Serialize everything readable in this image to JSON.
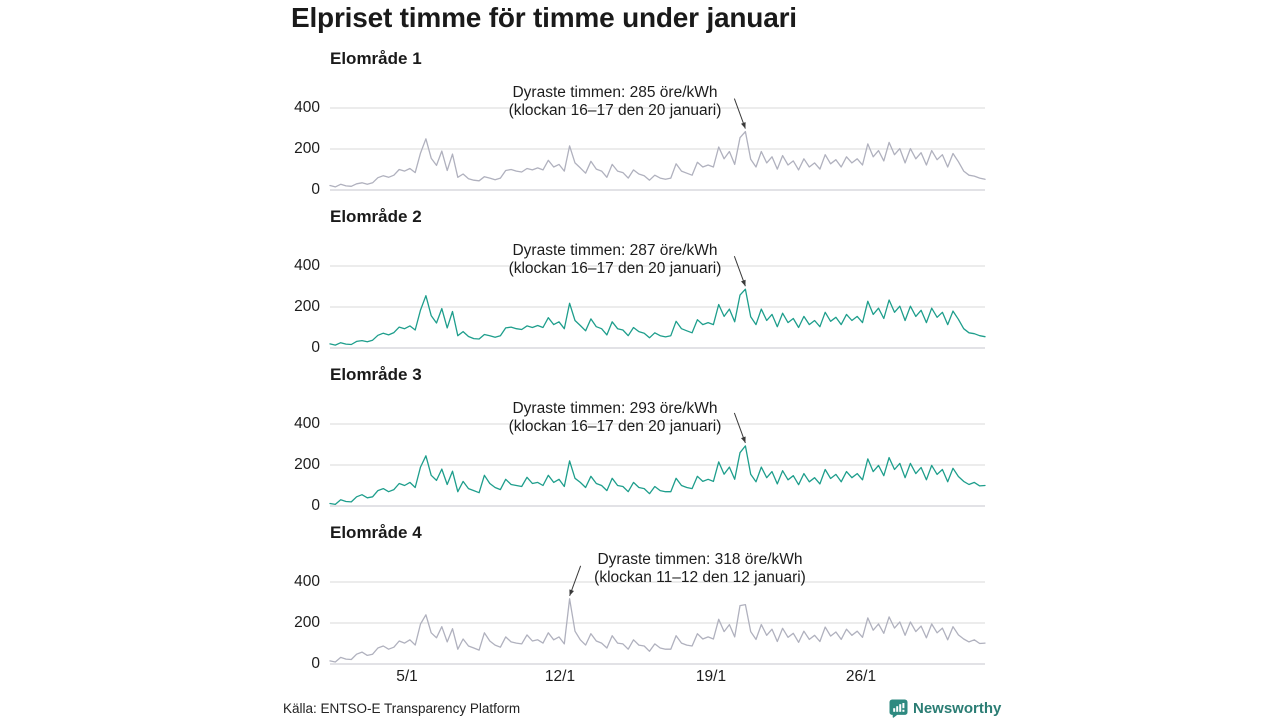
{
  "title": "Elpriset timme för timme under januari",
  "axis": {
    "y_ticks": [
      "400",
      "200",
      "0"
    ],
    "x_ticks": [
      "5/1",
      "12/1",
      "19/1",
      "26/1"
    ]
  },
  "footer": {
    "source": "Källa: ENTSO-E Transparency Platform",
    "brand": "Newsworthy"
  },
  "colors": {
    "line_gray": "#b0b1be",
    "line_teal": "#1e9e8c",
    "grid": "#d8d8d8",
    "baseline": "#c6c6cc",
    "arrow": "#3a3a3a",
    "brand_teal": "#2b7d74",
    "text": "#1d1d1d"
  },
  "chart_data": [
    {
      "type": "line",
      "title": "Elområde 1",
      "unit": "öre/kWh",
      "x_range": "1–31 januari, timvärden",
      "ylim": [
        0,
        450
      ],
      "y_ticks": [
        0,
        200,
        400
      ],
      "x_tick_labels": [
        "5/1",
        "12/1",
        "19/1",
        "26/1"
      ],
      "line_color": "#b0b1be",
      "annotation": {
        "line1": "Dyraste timmen: 285 öre/kWh",
        "line2": "(klockan 16–17 den 20 januari)",
        "arrow_dir": "down-right"
      },
      "peak": {
        "value": 285,
        "index": 78
      },
      "values": [
        22,
        15,
        28,
        20,
        18,
        30,
        35,
        28,
        35,
        60,
        70,
        62,
        72,
        100,
        92,
        105,
        85,
        180,
        250,
        155,
        120,
        190,
        95,
        175,
        62,
        78,
        55,
        48,
        45,
        65,
        58,
        50,
        58,
        95,
        100,
        92,
        88,
        105,
        98,
        108,
        98,
        145,
        112,
        125,
        92,
        215,
        132,
        108,
        82,
        140,
        102,
        92,
        62,
        125,
        92,
        85,
        58,
        98,
        78,
        70,
        48,
        72,
        58,
        52,
        58,
        128,
        92,
        82,
        72,
        135,
        112,
        122,
        112,
        210,
        152,
        188,
        125,
        255,
        285,
        150,
        112,
        188,
        132,
        162,
        102,
        168,
        122,
        142,
        98,
        152,
        112,
        132,
        102,
        172,
        128,
        148,
        112,
        162,
        132,
        152,
        122,
        225,
        162,
        192,
        142,
        232,
        172,
        202,
        132,
        202,
        152,
        182,
        122,
        192,
        148,
        172,
        112,
        178,
        138,
        92,
        72,
        68,
        58,
        52
      ]
    },
    {
      "type": "line",
      "title": "Elområde 2",
      "unit": "öre/kWh",
      "x_range": "1–31 januari, timvärden",
      "ylim": [
        0,
        450
      ],
      "y_ticks": [
        0,
        200,
        400
      ],
      "x_tick_labels": [
        "5/1",
        "12/1",
        "19/1",
        "26/1"
      ],
      "line_color": "#1e9e8c",
      "annotation": {
        "line1": "Dyraste timmen: 287 öre/kWh",
        "line2": "(klockan 16–17 den 20 januari)",
        "arrow_dir": "down-right"
      },
      "peak": {
        "value": 287,
        "index": 78
      },
      "values": [
        20,
        14,
        26,
        19,
        17,
        32,
        36,
        30,
        38,
        62,
        72,
        64,
        75,
        102,
        94,
        108,
        88,
        185,
        255,
        158,
        122,
        192,
        98,
        178,
        60,
        80,
        56,
        46,
        44,
        66,
        60,
        52,
        60,
        98,
        102,
        94,
        90,
        108,
        100,
        110,
        100,
        148,
        114,
        128,
        94,
        218,
        134,
        110,
        84,
        142,
        104,
        94,
        64,
        128,
        94,
        88,
        60,
        100,
        80,
        72,
        50,
        74,
        60,
        54,
        60,
        130,
        94,
        84,
        74,
        138,
        114,
        124,
        114,
        212,
        154,
        190,
        128,
        258,
        287,
        152,
        114,
        190,
        134,
        164,
        104,
        170,
        124,
        144,
        100,
        154,
        114,
        134,
        104,
        174,
        130,
        150,
        114,
        164,
        134,
        154,
        124,
        228,
        164,
        194,
        144,
        234,
        174,
        204,
        134,
        204,
        154,
        184,
        124,
        194,
        150,
        174,
        114,
        180,
        140,
        94,
        74,
        70,
        60,
        55
      ]
    },
    {
      "type": "line",
      "title": "Elområde 3",
      "unit": "öre/kWh",
      "x_range": "1–31 januari, timvärden",
      "ylim": [
        0,
        450
      ],
      "y_ticks": [
        0,
        200,
        400
      ],
      "x_tick_labels": [
        "5/1",
        "12/1",
        "19/1",
        "26/1"
      ],
      "line_color": "#1e9e8c",
      "annotation": {
        "line1": "Dyraste timmen: 293 öre/kWh",
        "line2": "(klockan 16–17 den 20 januari)",
        "arrow_dir": "down-right"
      },
      "peak": {
        "value": 293,
        "index": 78
      },
      "values": [
        12,
        8,
        30,
        22,
        20,
        45,
        55,
        40,
        45,
        75,
        85,
        70,
        80,
        110,
        100,
        115,
        90,
        190,
        245,
        150,
        125,
        180,
        105,
        170,
        70,
        120,
        85,
        75,
        65,
        150,
        110,
        90,
        80,
        130,
        105,
        100,
        95,
        140,
        110,
        115,
        100,
        150,
        115,
        130,
        95,
        220,
        135,
        115,
        90,
        145,
        110,
        100,
        75,
        135,
        100,
        95,
        70,
        115,
        90,
        85,
        60,
        95,
        75,
        70,
        70,
        135,
        100,
        90,
        85,
        145,
        120,
        130,
        120,
        215,
        155,
        190,
        130,
        260,
        293,
        155,
        118,
        190,
        138,
        168,
        108,
        172,
        128,
        148,
        104,
        158,
        118,
        138,
        108,
        178,
        134,
        154,
        118,
        168,
        138,
        158,
        128,
        230,
        168,
        198,
        148,
        236,
        178,
        208,
        138,
        208,
        158,
        188,
        128,
        198,
        154,
        178,
        118,
        184,
        144,
        120,
        105,
        115,
        98,
        100
      ]
    },
    {
      "type": "line",
      "title": "Elområde 4",
      "unit": "öre/kWh",
      "x_range": "1–31 januari, timvärden",
      "ylim": [
        0,
        450
      ],
      "y_ticks": [
        0,
        200,
        400
      ],
      "x_tick_labels": [
        "5/1",
        "12/1",
        "19/1",
        "26/1"
      ],
      "line_color": "#b0b1be",
      "annotation": {
        "line1": "Dyraste timmen: 318 öre/kWh",
        "line2": "(klockan 11–12 den 12 januari)",
        "arrow_dir": "down-left"
      },
      "peak": {
        "value": 318,
        "index": 45
      },
      "values": [
        15,
        10,
        32,
        24,
        22,
        48,
        58,
        42,
        48,
        78,
        88,
        72,
        82,
        112,
        102,
        118,
        92,
        195,
        240,
        152,
        128,
        182,
        108,
        172,
        72,
        122,
        88,
        78,
        68,
        152,
        112,
        92,
        82,
        132,
        108,
        102,
        98,
        142,
        112,
        118,
        102,
        152,
        118,
        132,
        98,
        318,
        160,
        118,
        92,
        148,
        112,
        102,
        78,
        138,
        102,
        98,
        72,
        118,
        92,
        88,
        62,
        98,
        78,
        72,
        72,
        138,
        102,
        92,
        88,
        148,
        122,
        132,
        122,
        218,
        158,
        192,
        132,
        285,
        290,
        158,
        120,
        192,
        140,
        170,
        110,
        174,
        130,
        150,
        106,
        160,
        120,
        140,
        110,
        180,
        136,
        156,
        120,
        170,
        140,
        160,
        130,
        225,
        165,
        195,
        150,
        230,
        175,
        205,
        140,
        205,
        158,
        185,
        128,
        195,
        152,
        175,
        118,
        182,
        142,
        122,
        108,
        118,
        100,
        102
      ]
    }
  ]
}
